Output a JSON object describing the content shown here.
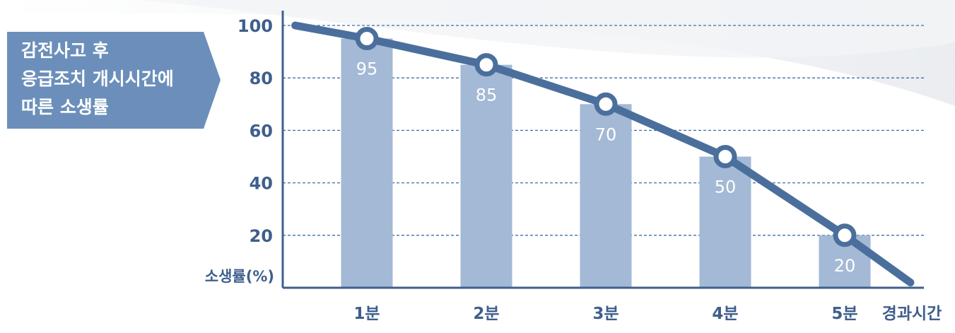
{
  "title_lines": [
    "감전사고 후",
    "응급조치 개시시간에",
    "따른 소생률"
  ],
  "colors": {
    "title_bg": "#6b8fba",
    "bar": "#a3b9d5",
    "line": "#4b6f9c",
    "axis": "#3f5f8c",
    "grid": "#3f6ea8",
    "text": "#3f5f8c"
  },
  "chart_data": {
    "type": "bar",
    "categories": [
      "1분",
      "2분",
      "3분",
      "4분",
      "5분"
    ],
    "values": [
      95,
      85,
      70,
      50,
      20
    ],
    "overlay_line": {
      "points": [
        {
          "x": 0.4,
          "y": 100
        },
        {
          "x": 1,
          "y": 95
        },
        {
          "x": 2,
          "y": 85
        },
        {
          "x": 3,
          "y": 70
        },
        {
          "x": 4,
          "y": 50
        },
        {
          "x": 5,
          "y": 20
        },
        {
          "x": 5.55,
          "y": 2
        }
      ]
    },
    "data_labels": [
      "95",
      "85",
      "70",
      "50",
      "20"
    ],
    "title": "감전사고 후 응급조치 개시시간에 따른 소생률",
    "xlabel": "경과시간",
    "ylabel": "소생률(%)",
    "yticks": [
      20,
      40,
      60,
      80,
      100
    ],
    "ylim": [
      0,
      105
    ],
    "grid": true,
    "grid_style": "dashed-horizontal"
  }
}
